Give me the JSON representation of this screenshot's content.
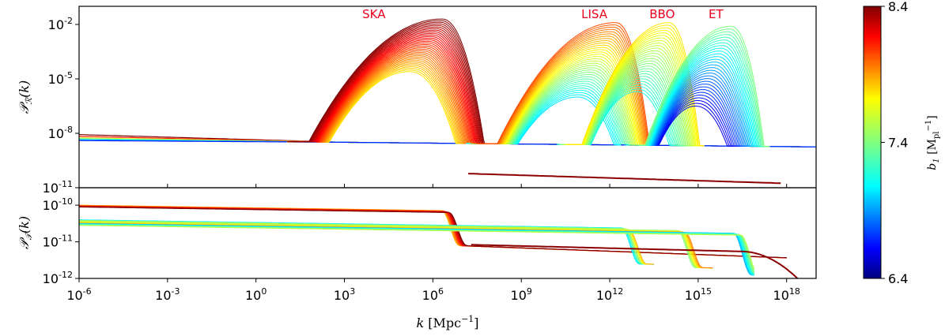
{
  "chart_data": {
    "type": "line",
    "x_axis": {
      "label": "k  [Mpc⁻¹]",
      "scale": "log",
      "range": [
        1e-06,
        1e+19
      ],
      "ticks": [
        {
          "value": 1e-06,
          "base": "10",
          "exp": "-6"
        },
        {
          "value": 0.001,
          "base": "10",
          "exp": "-3"
        },
        {
          "value": 1.0,
          "base": "10",
          "exp": "0"
        },
        {
          "value": 1000.0,
          "base": "10",
          "exp": "3"
        },
        {
          "value": 1000000.0,
          "base": "10",
          "exp": "6"
        },
        {
          "value": 1000000000.0,
          "base": "10",
          "exp": "9"
        },
        {
          "value": 1000000000000.0,
          "base": "10",
          "exp": "12"
        },
        {
          "value": 1000000000000000.0,
          "base": "10",
          "exp": "15"
        },
        {
          "value": 1e+18,
          "base": "10",
          "exp": "18"
        }
      ]
    },
    "panels": [
      {
        "name": "scalar",
        "ylabel": "P_R(k)",
        "yscale": "log",
        "ylim": [
          1e-11,
          0.1
        ],
        "yticks": [
          {
            "value": 0.01,
            "base": "10",
            "exp": "-2"
          },
          {
            "value": 1e-05,
            "base": "10",
            "exp": "-5"
          },
          {
            "value": 1e-08,
            "base": "10",
            "exp": "-8"
          },
          {
            "value": 1e-11,
            "base": "10",
            "exp": "-11"
          }
        ],
        "annotations": [
          {
            "text": "SKA",
            "k": 10000.0
          },
          {
            "text": "LISA",
            "k": 300000000000.0
          },
          {
            "text": "BBO",
            "k": 60000000000000.0
          },
          {
            "text": "ET",
            "k": 4000000000000000.0
          }
        ],
        "peak_families": [
          {
            "name": "SKA",
            "k_peak_range": [
              100000.0,
              1000000.0
            ],
            "b1_range": [
              7.2,
              8.4
            ],
            "peak_max": 0.02
          },
          {
            "name": "LISA",
            "k_peak_range": [
              100000000000.0,
              1500000000000.0
            ],
            "b1_range": [
              7.3,
              7.9
            ],
            "peak_max": 0.012
          },
          {
            "name": "BBO",
            "k_peak_range": [
              20000000000000.0,
              100000000000000.0
            ],
            "b1_range": [
              7.2,
              7.7
            ],
            "peak_max": 0.012
          },
          {
            "name": "ET",
            "k_peak_range": [
              1000000000000000.0,
              5e+16
            ],
            "b1_range": [
              6.8,
              7.6
            ],
            "peak_max": 0.008
          }
        ]
      },
      {
        "name": "tensor",
        "ylabel": "P_T(k)",
        "yscale": "log",
        "ylim": [
          1e-12,
          3e-10
        ],
        "yticks": [
          {
            "value": 1e-10,
            "base": "10",
            "exp": "-10"
          },
          {
            "value": 1e-11,
            "base": "10",
            "exp": "-11"
          },
          {
            "value": 1e-12,
            "base": "10",
            "exp": "-12"
          }
        ],
        "plateaus": [
          1e-10,
          4e-11,
          3e-11
        ],
        "drops_at_k": [
          1000000.0,
          1000000000000.0,
          100000000000000.0,
          1e+16
        ]
      }
    ],
    "colorbar": {
      "label": "b₁  [Mₚₗ⁻¹]",
      "colormap": "jet",
      "range": [
        6.4,
        8.4
      ],
      "ticks": [
        "8.4",
        "7.4",
        "6.4"
      ]
    },
    "grid": false
  }
}
